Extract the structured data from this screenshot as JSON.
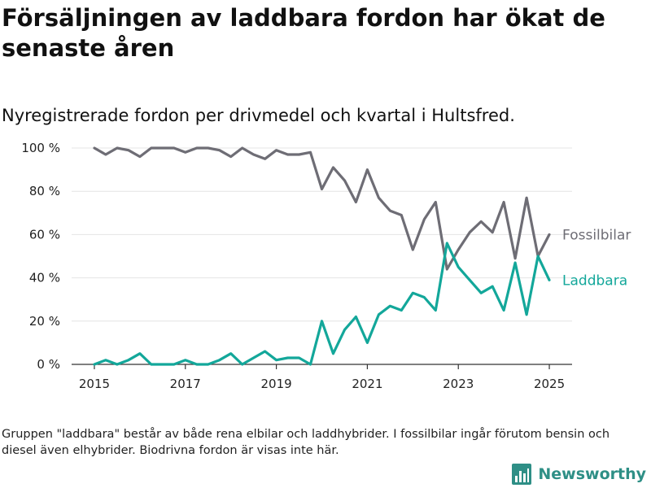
{
  "title": "Försäljningen av laddbara fordon har ökat de senaste åren",
  "subtitle": "Nyregistrerade fordon per drivmedel och kvartal i Hultsfred.",
  "footnote": "Gruppen \"laddbara\" består av både rena elbilar och laddhybrider. I fossilbilar ingår förutom bensin och diesel även elhybrider. Biodrivna fordon är visas inte här.",
  "brand": {
    "name": "Newsworthy",
    "icon": "bar-chart-logo-icon",
    "color": "#2e8f86"
  },
  "chart_data": {
    "type": "line",
    "x": [
      2015.0,
      2015.25,
      2015.5,
      2015.75,
      2016.0,
      2016.25,
      2016.5,
      2016.75,
      2017.0,
      2017.25,
      2017.5,
      2017.75,
      2018.0,
      2018.25,
      2018.5,
      2018.75,
      2019.0,
      2019.25,
      2019.5,
      2019.75,
      2020.0,
      2020.25,
      2020.5,
      2020.75,
      2021.0,
      2021.25,
      2021.5,
      2021.75,
      2022.0,
      2022.25,
      2022.5,
      2022.75,
      2023.0,
      2023.25,
      2023.5,
      2023.75,
      2024.0,
      2024.25,
      2024.5,
      2024.75,
      2025.0
    ],
    "series": [
      {
        "name": "Fossilbilar",
        "color": "#6e6d75",
        "values": [
          100,
          97,
          100,
          99,
          96,
          100,
          100,
          100,
          98,
          100,
          100,
          99,
          96,
          100,
          97,
          95,
          99,
          97,
          97,
          98,
          81,
          91,
          85,
          75,
          90,
          77,
          71,
          69,
          53,
          67,
          75,
          44,
          53,
          61,
          66,
          61,
          75,
          49,
          77,
          50,
          60
        ]
      },
      {
        "name": "Laddbara",
        "color": "#13a79a",
        "values": [
          0,
          2,
          0,
          2,
          5,
          0,
          0,
          0,
          2,
          0,
          0,
          2,
          5,
          0,
          3,
          6,
          2,
          3,
          3,
          0,
          20,
          5,
          16,
          22,
          10,
          23,
          27,
          25,
          33,
          31,
          25,
          56,
          45,
          39,
          33,
          36,
          25,
          47,
          23,
          50,
          39
        ]
      }
    ],
    "x_ticks": [
      "2015",
      "2017",
      "2019",
      "2021",
      "2023",
      "2025"
    ],
    "y_ticks": [
      "0 %",
      "20 %",
      "40 %",
      "60 %",
      "80 %",
      "100 %"
    ],
    "xlim": [
      2014.5,
      2025.5
    ],
    "ylim": [
      0,
      100
    ],
    "grid": true,
    "legend": "inline-right"
  }
}
